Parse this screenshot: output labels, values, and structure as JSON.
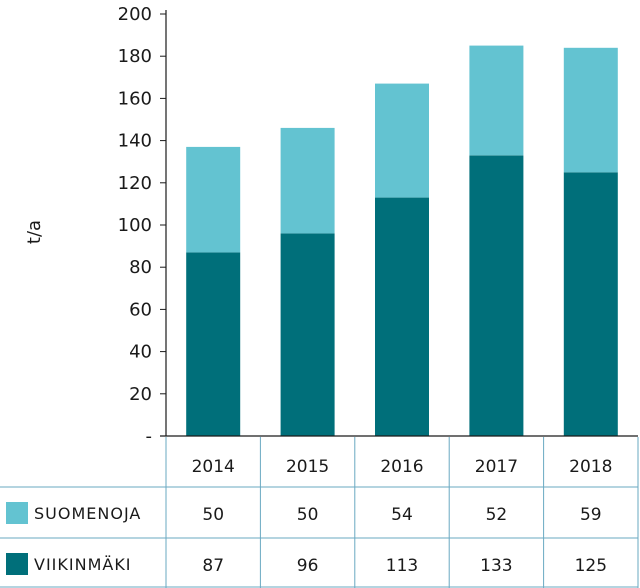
{
  "chart_data": {
    "type": "bar",
    "stacked": true,
    "categories": [
      "2014",
      "2015",
      "2016",
      "2017",
      "2018"
    ],
    "series": [
      {
        "name": "VIIKINMÄKI",
        "values": [
          87,
          96,
          113,
          133,
          125
        ],
        "color": "#006f7a"
      },
      {
        "name": "SUOMENOJA",
        "values": [
          50,
          50,
          54,
          52,
          59
        ],
        "color": "#63c3d1"
      }
    ],
    "ylabel": "t/a",
    "ylim": [
      0,
      200
    ],
    "yticks": [
      0,
      20,
      40,
      60,
      80,
      100,
      120,
      140,
      160,
      180,
      200
    ],
    "ytick_labels": [
      "-",
      "20",
      "40",
      "60",
      "80",
      "100",
      "120",
      "140",
      "160",
      "180",
      "200"
    ],
    "grid": false,
    "legend": "data-table rows below chart",
    "table": {
      "rows": [
        {
          "label": "SUOMENOJA",
          "values": [
            "50",
            "50",
            "54",
            "52",
            "59"
          ]
        },
        {
          "label": "VIIKINMÄKI",
          "values": [
            "87",
            "96",
            "113",
            "133",
            "125"
          ]
        }
      ]
    }
  }
}
